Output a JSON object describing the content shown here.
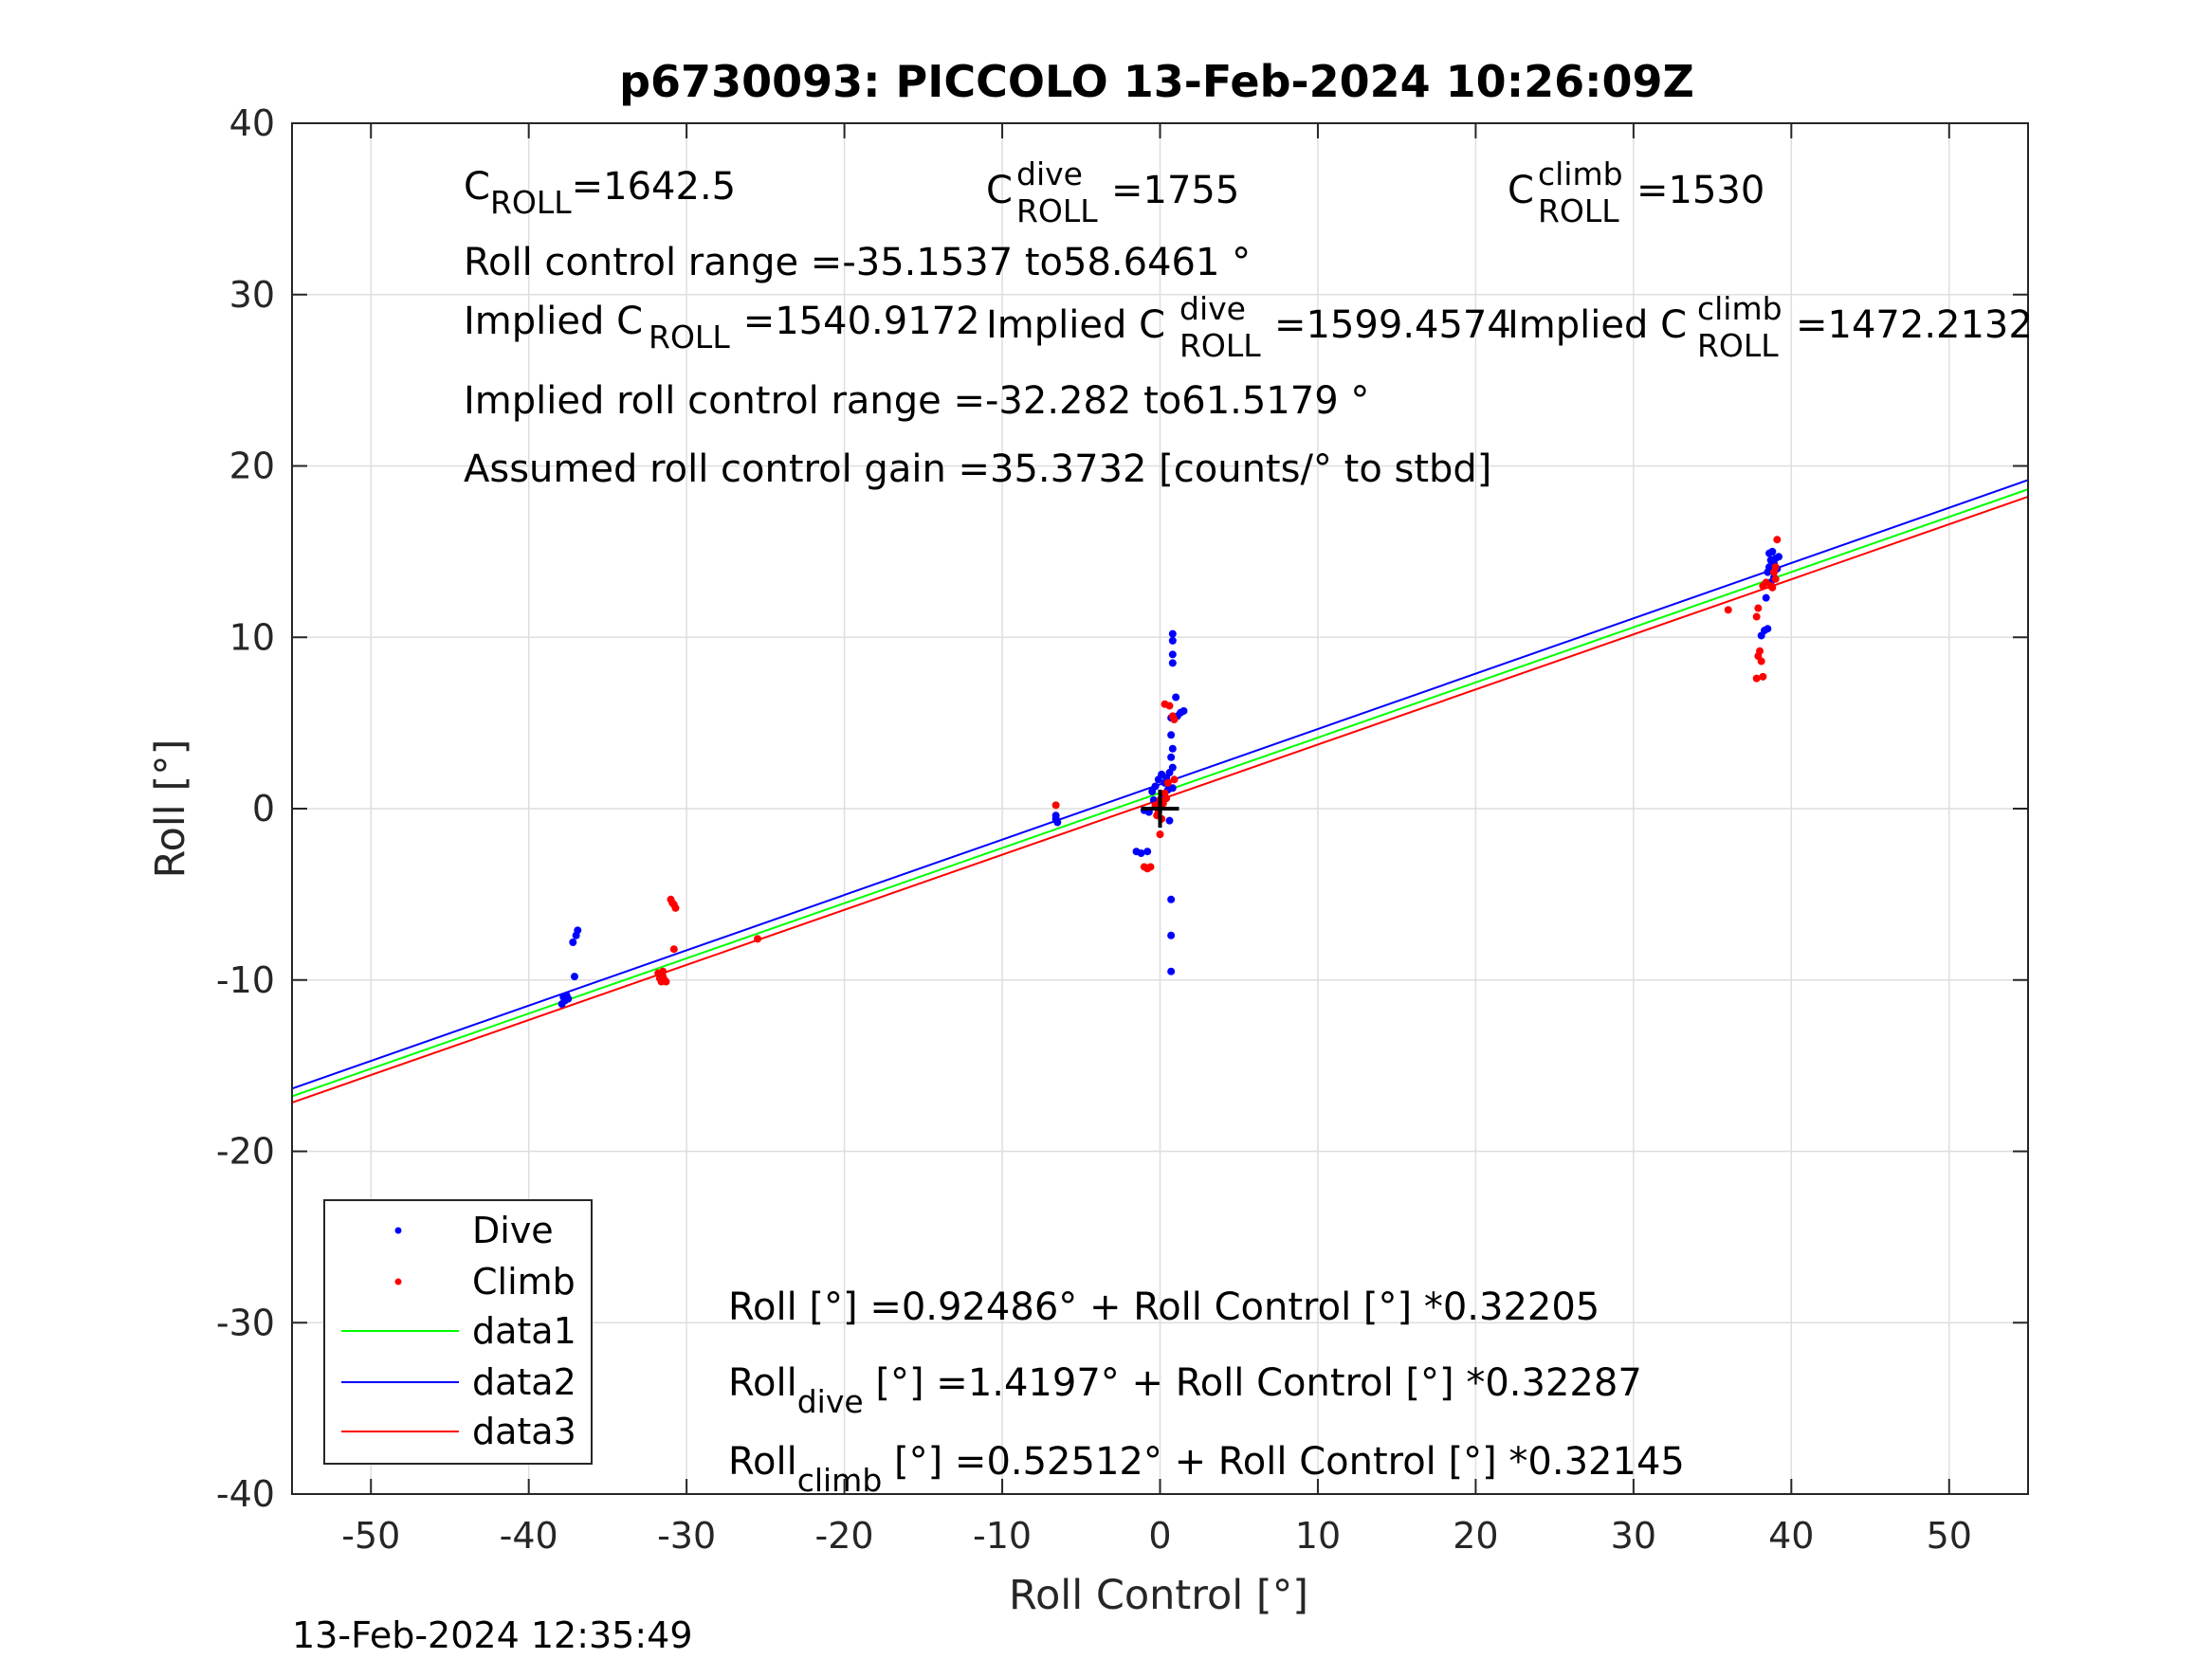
{
  "chart_data": {
    "type": "scatter",
    "title": "p6730093: PICCOLO 13-Feb-2024 10:26:09Z",
    "xlabel": "Roll Control [°]",
    "ylabel": "Roll [°]",
    "xlim": [
      -55,
      55
    ],
    "ylim": [
      -40,
      40
    ],
    "xticks": [
      -50,
      -40,
      -30,
      -20,
      -10,
      0,
      10,
      20,
      30,
      40,
      50
    ],
    "yticks": [
      -40,
      -30,
      -20,
      -10,
      0,
      10,
      20,
      30,
      40
    ],
    "grid": true,
    "legend_position": "bottom-left",
    "series": [
      {
        "name": "Dive",
        "kind": "points",
        "color": "#0000ff",
        "points": [
          [
            -37.9,
            -11.4
          ],
          [
            -37.8,
            -11.0
          ],
          [
            -37.6,
            -10.9
          ],
          [
            -37.7,
            -11.2
          ],
          [
            -37.5,
            -11.1
          ],
          [
            -37.2,
            -7.8
          ],
          [
            -37.0,
            -7.4
          ],
          [
            -36.9,
            -7.1
          ],
          [
            -37.1,
            -9.8
          ],
          [
            -6.6,
            -0.4
          ],
          [
            -6.5,
            -0.8
          ],
          [
            -6.6,
            -0.6
          ],
          [
            -1.5,
            -2.5
          ],
          [
            -1.2,
            -2.6
          ],
          [
            -0.8,
            -2.5
          ],
          [
            -1.0,
            -0.1
          ],
          [
            -0.7,
            -0.2
          ],
          [
            -0.5,
            1.0
          ],
          [
            -0.3,
            1.3
          ],
          [
            -0.1,
            1.7
          ],
          [
            0.1,
            2.0
          ],
          [
            0.3,
            1.5
          ],
          [
            0.5,
            1.1
          ],
          [
            -0.4,
            0.5
          ],
          [
            0.2,
            0.8
          ],
          [
            0.6,
            2.1
          ],
          [
            0.4,
            1.8
          ],
          [
            0.8,
            1.2
          ],
          [
            0.7,
            5.3
          ],
          [
            0.8,
            3.5
          ],
          [
            0.7,
            3.0
          ],
          [
            0.7,
            4.3
          ],
          [
            0.8,
            2.4
          ],
          [
            0.8,
            8.5
          ],
          [
            0.8,
            9.0
          ],
          [
            0.8,
            9.8
          ],
          [
            0.8,
            10.2
          ],
          [
            1.1,
            5.4
          ],
          [
            1.3,
            5.6
          ],
          [
            1.5,
            5.7
          ],
          [
            1.0,
            6.5
          ],
          [
            0.7,
            -5.3
          ],
          [
            0.7,
            -7.4
          ],
          [
            0.7,
            -9.5
          ],
          [
            0.6,
            -0.7
          ],
          [
            38.1,
            10.1
          ],
          [
            38.3,
            10.4
          ],
          [
            38.5,
            10.5
          ],
          [
            38.4,
            12.3
          ],
          [
            38.5,
            13.8
          ],
          [
            38.6,
            14.1
          ],
          [
            38.7,
            14.5
          ],
          [
            38.6,
            14.9
          ],
          [
            38.8,
            15.0
          ],
          [
            38.9,
            14.3
          ],
          [
            39.0,
            14.6
          ],
          [
            39.1,
            14.0
          ],
          [
            38.9,
            13.5
          ],
          [
            39.2,
            14.7
          ],
          [
            38.7,
            13.2
          ]
        ]
      },
      {
        "name": "Climb",
        "kind": "points",
        "color": "#ff0000",
        "points": [
          [
            -31.8,
            -9.6
          ],
          [
            -31.7,
            -9.9
          ],
          [
            -31.6,
            -10.1
          ],
          [
            -31.5,
            -9.8
          ],
          [
            -31.4,
            -10.0
          ],
          [
            -31.6,
            -9.7
          ],
          [
            -31.3,
            -10.1
          ],
          [
            -31.5,
            -9.5
          ],
          [
            -31.0,
            -5.3
          ],
          [
            -30.8,
            -5.6
          ],
          [
            -30.7,
            -5.8
          ],
          [
            -30.9,
            -5.5
          ],
          [
            -30.8,
            -8.2
          ],
          [
            -25.5,
            -7.6
          ],
          [
            -6.6,
            0.2
          ],
          [
            -1.0,
            -3.4
          ],
          [
            -0.8,
            -3.5
          ],
          [
            -0.6,
            -3.4
          ],
          [
            -0.3,
            0.2
          ],
          [
            -0.2,
            -0.4
          ],
          [
            0.0,
            0.5
          ],
          [
            0.1,
            -0.6
          ],
          [
            0.2,
            0.3
          ],
          [
            0.3,
            0.9
          ],
          [
            -0.1,
            -0.2
          ],
          [
            0.4,
            0.6
          ],
          [
            0.0,
            -1.5
          ],
          [
            0.5,
            1.5
          ],
          [
            0.3,
            6.1
          ],
          [
            0.6,
            6.0
          ],
          [
            0.8,
            5.4
          ],
          [
            0.9,
            5.2
          ],
          [
            0.9,
            1.7
          ],
          [
            36.0,
            11.6
          ],
          [
            37.8,
            7.6
          ],
          [
            38.2,
            7.7
          ],
          [
            37.9,
            8.9
          ],
          [
            38.0,
            9.2
          ],
          [
            38.1,
            8.6
          ],
          [
            37.8,
            11.2
          ],
          [
            37.9,
            11.7
          ],
          [
            38.2,
            13.0
          ],
          [
            38.4,
            13.2
          ],
          [
            38.7,
            13.0
          ],
          [
            38.9,
            13.8
          ],
          [
            39.0,
            14.1
          ],
          [
            39.1,
            15.7
          ],
          [
            38.8,
            12.9
          ],
          [
            39.0,
            13.4
          ]
        ]
      },
      {
        "name": "data1",
        "kind": "line",
        "color": "#00ff00",
        "intercept": 0.92486,
        "slope": 0.32205
      },
      {
        "name": "data2",
        "kind": "line",
        "color": "#0000ff",
        "intercept": 1.4197,
        "slope": 0.32287
      },
      {
        "name": "data3",
        "kind": "line",
        "color": "#ff0000",
        "intercept": 0.52512,
        "slope": 0.32145
      }
    ],
    "center_marker": {
      "x": 0,
      "y": 0,
      "symbol": "+",
      "color": "#000000"
    },
    "annotations": {
      "c_roll": {
        "main": "C",
        "sub": "ROLL",
        "value": "=1642.5"
      },
      "c_roll_dive": {
        "main": "C",
        "sup": "dive",
        "sub": "ROLL",
        "value": "=1755"
      },
      "c_roll_climb": {
        "main": "C",
        "sup": "climb",
        "sub": "ROLL",
        "value": "=1530"
      },
      "roll_control_range": "Roll control range =-35.1537 to58.6461 °",
      "implied_c_roll": {
        "main": "Implied C",
        "sub": "ROLL",
        "value": "=1540.9172"
      },
      "implied_c_roll_dive": {
        "main": "Implied C",
        "sup": "dive",
        "sub": "ROLL",
        "value": "=1599.4574"
      },
      "implied_c_roll_climb": {
        "main": "Implied C",
        "sup": "climb",
        "sub": "ROLL",
        "value": "=1472.2132"
      },
      "implied_range": "Implied roll control range =-32.282 to61.5179 °",
      "assumed_gain": "Assumed roll control gain =35.3732 [counts/° to stbd]",
      "fit_all": "Roll [°] =0.92486° + Roll Control [°] *0.32205",
      "fit_dive": {
        "main": "Roll",
        "sub": "dive",
        "rest": " [°] =1.4197° + Roll Control [°] *0.32287"
      },
      "fit_climb": {
        "main": "Roll",
        "sub": "climb",
        "rest": " [°] =0.52512° + Roll Control [°] *0.32145"
      }
    }
  },
  "footer_timestamp": "13-Feb-2024 12:35:49"
}
